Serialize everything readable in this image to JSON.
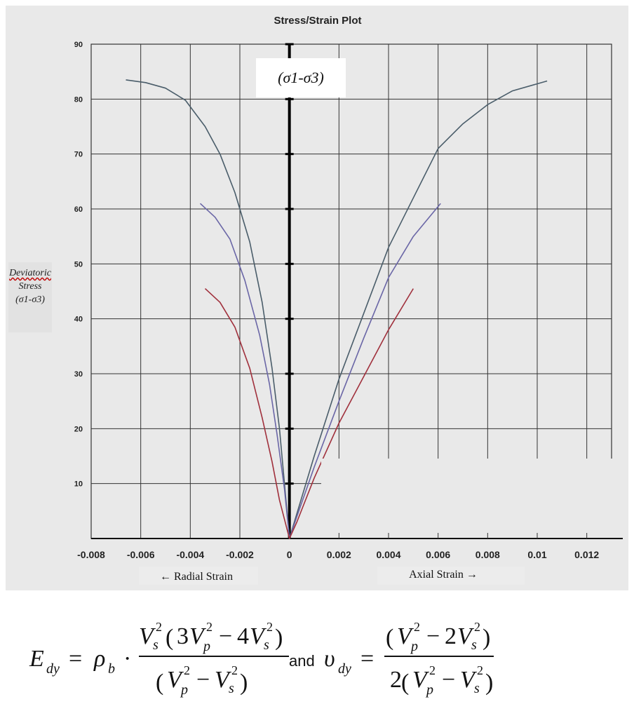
{
  "chart_data": {
    "type": "line",
    "title": "Stress/Strain Plot",
    "xlabel_left": "← Radial Strain",
    "xlabel_right": "Axial Strain →",
    "ylabel": [
      "Deviatoric",
      "Stress",
      "(σ1-σ3)"
    ],
    "annotation": "(σ1-σ3)",
    "xlim": [
      -0.008,
      0.013
    ],
    "ylim": [
      0,
      90
    ],
    "x_ticks": [
      "-0.008",
      "-0.006",
      "-0.004",
      "-0.002",
      "0",
      "0.002",
      "0.004",
      "0.006",
      "0.008",
      "0.01",
      "0.012"
    ],
    "y_ticks": [
      "10",
      "20",
      "30",
      "40",
      "50",
      "60",
      "70",
      "80",
      "90"
    ],
    "grid": true,
    "series": [
      {
        "color": "#4a5d6a",
        "points": [
          [
            -0.0066,
            83.5
          ],
          [
            -0.0058,
            83
          ],
          [
            -0.005,
            82
          ],
          [
            -0.0042,
            79.8
          ],
          [
            -0.0034,
            75
          ],
          [
            -0.0028,
            70
          ],
          [
            -0.0022,
            63
          ],
          [
            -0.0016,
            54
          ],
          [
            -0.0011,
            43
          ],
          [
            -0.0007,
            31
          ],
          [
            -0.0004,
            20
          ],
          [
            -0.0002,
            10
          ],
          [
            0,
            0
          ],
          [
            0.0002,
            3
          ],
          [
            0.001,
            15
          ],
          [
            0.002,
            29
          ],
          [
            0.003,
            41
          ],
          [
            0.004,
            53
          ],
          [
            0.005,
            62
          ],
          [
            0.006,
            71
          ],
          [
            0.007,
            75.5
          ],
          [
            0.008,
            79
          ],
          [
            0.009,
            81.5
          ],
          [
            0.0104,
            83.3
          ]
        ]
      },
      {
        "color": "#6a66a6",
        "points": [
          [
            -0.0036,
            61
          ],
          [
            -0.003,
            58.5
          ],
          [
            -0.0024,
            54.5
          ],
          [
            -0.0018,
            47
          ],
          [
            -0.0012,
            37
          ],
          [
            -0.0008,
            28
          ],
          [
            -0.0005,
            19
          ],
          [
            -0.0002,
            9
          ],
          [
            0,
            0
          ],
          [
            0.0003,
            4
          ],
          [
            0.001,
            13
          ],
          [
            0.002,
            25
          ],
          [
            0.003,
            36.5
          ],
          [
            0.004,
            47.5
          ],
          [
            0.005,
            55
          ],
          [
            0.0061,
            61
          ]
        ]
      },
      {
        "color": "#a0303c",
        "points": [
          [
            -0.0034,
            45.5
          ],
          [
            -0.0028,
            43
          ],
          [
            -0.0022,
            38.5
          ],
          [
            -0.0016,
            31
          ],
          [
            -0.0011,
            22
          ],
          [
            -0.0007,
            14
          ],
          [
            -0.0004,
            7
          ],
          [
            0,
            0
          ],
          [
            0.0003,
            3
          ],
          [
            0.001,
            11
          ],
          [
            0.002,
            21
          ],
          [
            0.003,
            29.5
          ],
          [
            0.004,
            38
          ],
          [
            0.005,
            45.5
          ]
        ]
      }
    ]
  },
  "formula": {
    "e_main": "E",
    "e_sub": "dy",
    "equals": "=",
    "rho": "ρ",
    "rho_sub": "b",
    "dot": "·",
    "and_text": "and",
    "nu_main": "υ",
    "nu_sub": "dy"
  }
}
